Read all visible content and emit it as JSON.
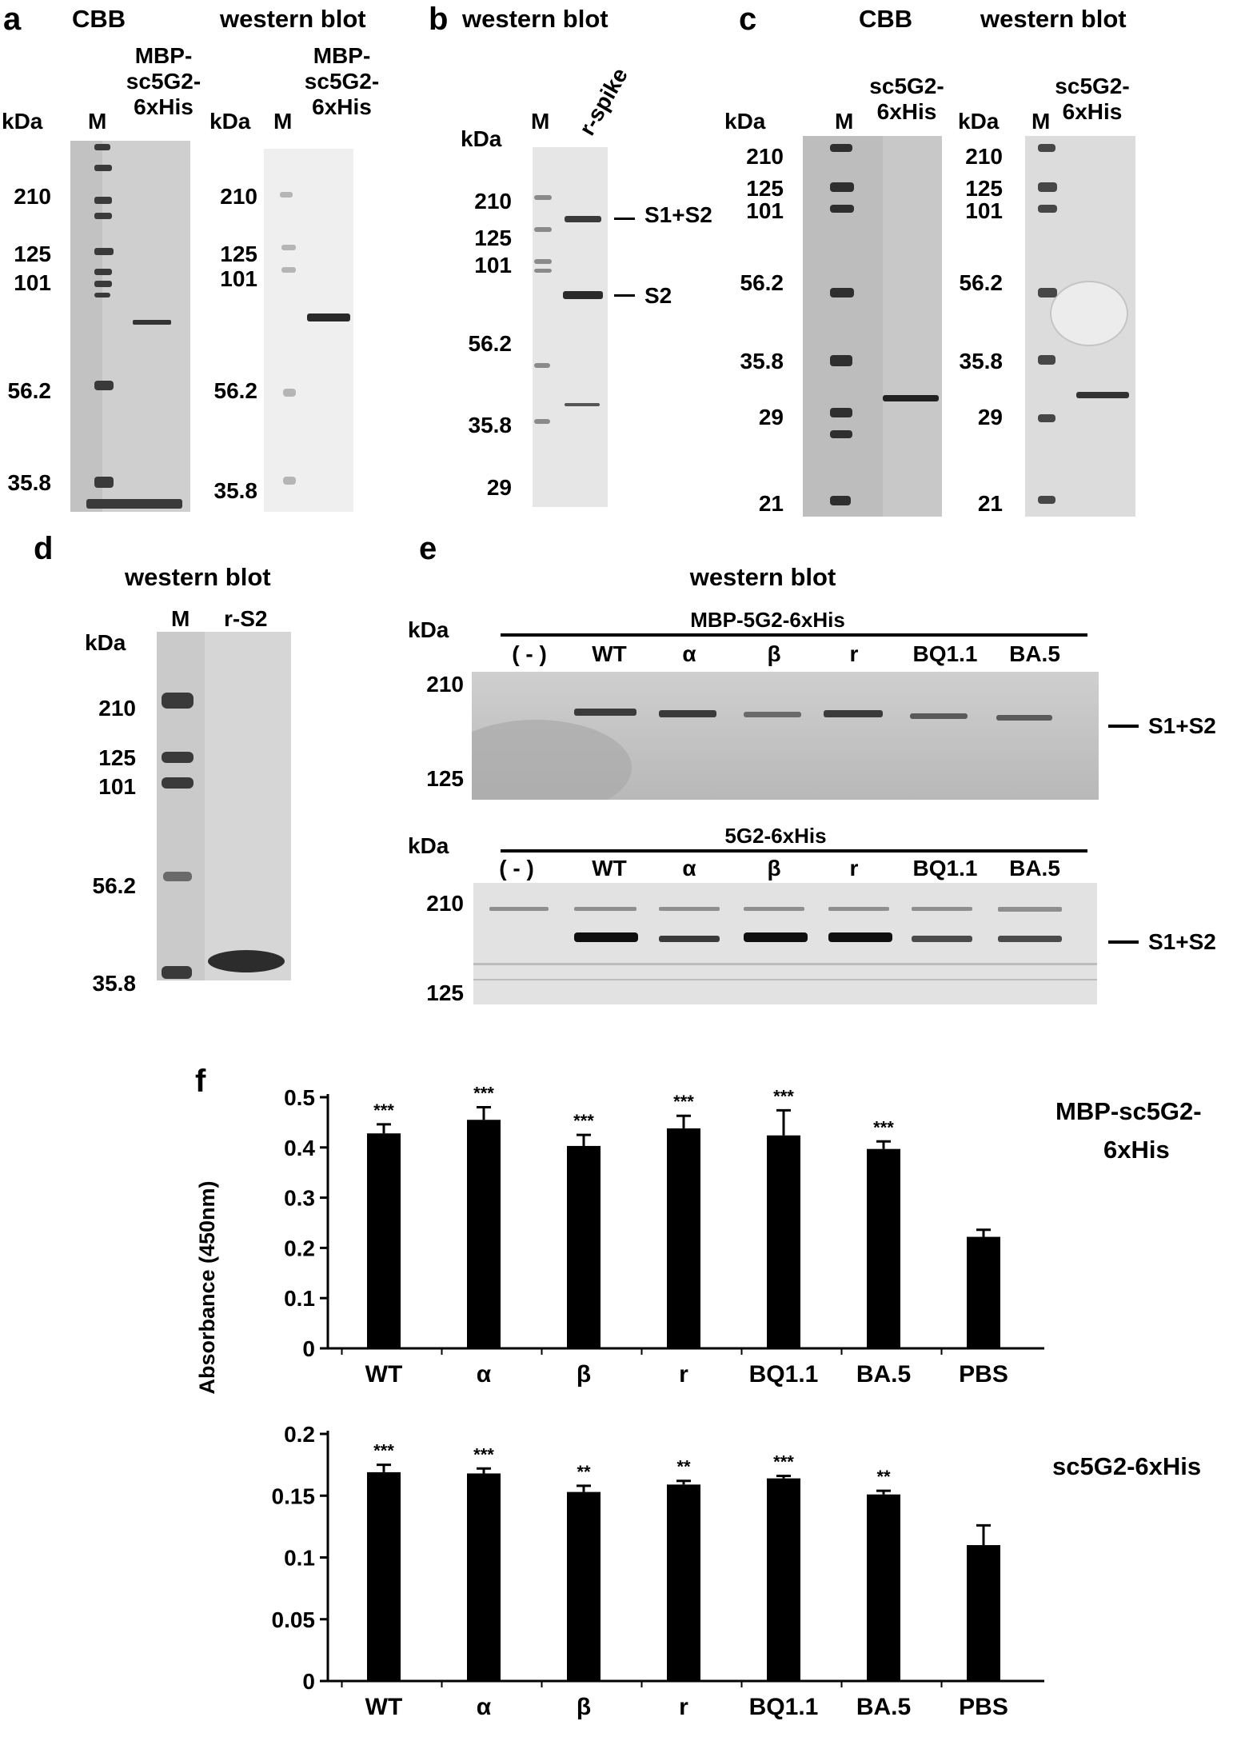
{
  "panels": {
    "a": {
      "letter": "a",
      "cbb_title": "CBB",
      "wb_title": "western blot",
      "sample_label": [
        "MBP-",
        "sc5G2-",
        "6xHis"
      ],
      "kda": "kDa",
      "marker": "M",
      "cbb_markers": [
        "210",
        "125",
        "101",
        "56.2",
        "35.8"
      ],
      "wb_markers": [
        "210",
        "125",
        "101",
        "56.2",
        "35.8"
      ]
    },
    "b": {
      "letter": "b",
      "title": "western blot",
      "kda": "kDa",
      "marker": "M",
      "lane_label": "r-spike",
      "markers": [
        "210",
        "125",
        "101",
        "56.2",
        "35.8",
        "29"
      ],
      "band_labels": [
        "S1+S2",
        "S2"
      ]
    },
    "c": {
      "letter": "c",
      "cbb_title": "CBB",
      "wb_title": "western blot",
      "sample_label": [
        "sc5G2-",
        "6xHis"
      ],
      "kda": "kDa",
      "marker": "M",
      "cbb_markers": [
        "210",
        "125",
        "101",
        "56.2",
        "35.8",
        "29",
        "21"
      ],
      "wb_markers": [
        "210",
        "125",
        "101",
        "56.2",
        "35.8",
        "29",
        "21"
      ]
    },
    "d": {
      "letter": "d",
      "title": "western blot",
      "kda": "kDa",
      "marker": "M",
      "lane_label": "r-S2",
      "markers": [
        "210",
        "125",
        "101",
        "56.2",
        "35.8"
      ]
    },
    "e": {
      "letter": "e",
      "title": "western blot",
      "kda": "kDa",
      "top_construct": "MBP-5G2-6xHis",
      "bottom_construct": "5G2-6xHis",
      "lanes": [
        "( - )",
        "WT",
        "α",
        "β",
        "r",
        "BQ1.1",
        "BA.5"
      ],
      "markers": [
        "210",
        "125"
      ],
      "band_label": "S1+S2"
    },
    "f": {
      "letter": "f"
    }
  },
  "chart_data": [
    {
      "type": "bar",
      "title": "MBP-sc5G2-6xHis",
      "ylabel": "Absorbance (450nm)",
      "categories": [
        "WT",
        "α",
        "β",
        "r",
        "BQ1.1",
        "BA.5",
        "PBS"
      ],
      "values": [
        0.428,
        0.455,
        0.403,
        0.438,
        0.424,
        0.397,
        0.222
      ],
      "errors": [
        0.018,
        0.025,
        0.022,
        0.025,
        0.05,
        0.015,
        0.014
      ],
      "significance": [
        "***",
        "***",
        "***",
        "***",
        "***",
        "***",
        ""
      ],
      "yticks": [
        "0",
        "0.1",
        "0.2",
        "0.3",
        "0.4",
        "0.5"
      ],
      "ylim": [
        0,
        0.5
      ]
    },
    {
      "type": "bar",
      "title": "sc5G2-6xHis",
      "ylabel": "Absorbance (450nm)",
      "categories": [
        "WT",
        "α",
        "β",
        "r",
        "BQ1.1",
        "BA.5",
        "PBS"
      ],
      "values": [
        0.169,
        0.168,
        0.153,
        0.159,
        0.164,
        0.151,
        0.11
      ],
      "errors": [
        0.006,
        0.004,
        0.005,
        0.003,
        0.002,
        0.003,
        0.016
      ],
      "significance": [
        "***",
        "***",
        "**",
        "**",
        "***",
        "**",
        ""
      ],
      "yticks": [
        "0",
        "0.05",
        "0.1",
        "0.15",
        "0.2"
      ],
      "ylim": [
        0,
        0.2
      ]
    }
  ],
  "colors": {
    "bar": "#000000",
    "gel_light": "#d9d9d9",
    "band": "#2a2a2a"
  }
}
